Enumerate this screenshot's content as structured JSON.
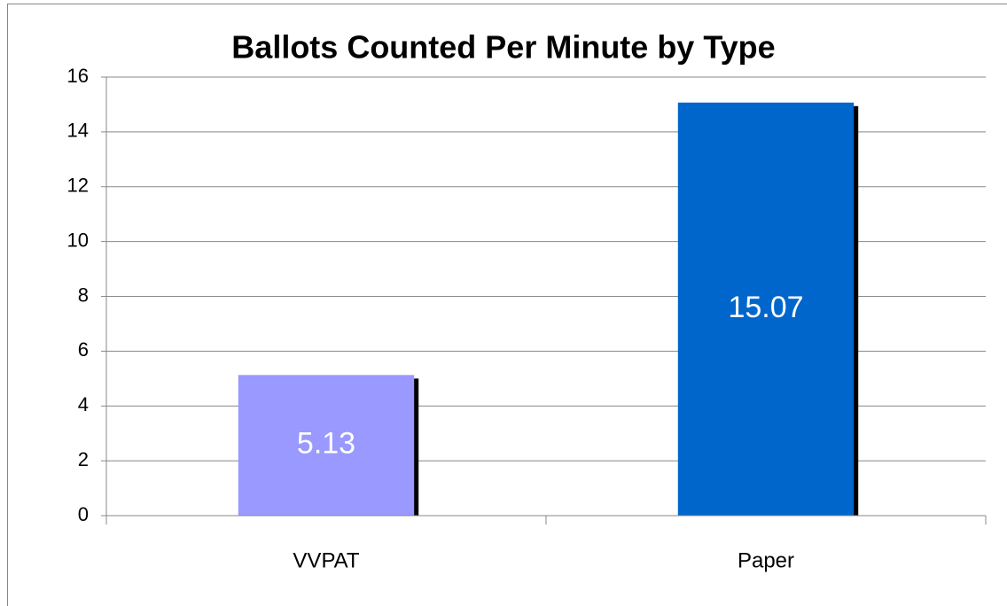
{
  "chart_data": {
    "type": "bar",
    "title": "Ballots Counted Per Minute by Type",
    "categories": [
      "VVPAT",
      "Paper"
    ],
    "values": [
      5.13,
      15.07
    ],
    "colors": [
      "#9999ff",
      "#0066cc"
    ],
    "ylim": [
      0,
      16
    ],
    "yticks": [
      0,
      2,
      4,
      6,
      8,
      10,
      12,
      14,
      16
    ],
    "grid": true
  }
}
